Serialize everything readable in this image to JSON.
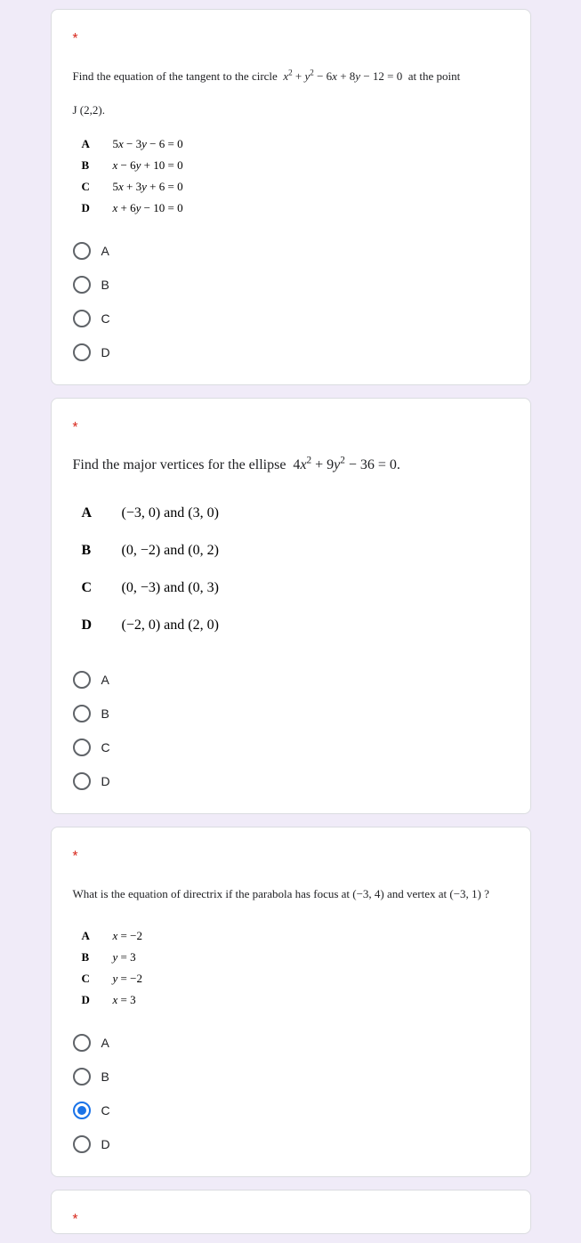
{
  "q1": {
    "asterisk": "*",
    "prompt_html": "Find the equation of the tangent to the circle  <span class='math'>x</span><sup>2</sup> + <span class='math'>y</span><sup>2</sup> − 6<span class='math'>x</span> + 8<span class='math'>y</span> − 12 = 0  at the point",
    "prompt_line2": "J (2,2).",
    "rows": [
      {
        "key": "A",
        "val_html": "5<span class='math'>x</span> − 3<span class='math'>y</span> − 6 = 0"
      },
      {
        "key": "B",
        "val_html": "<span class='math'>x</span> − 6<span class='math'>y</span> + 10 = 0"
      },
      {
        "key": "C",
        "val_html": "5<span class='math'>x</span> + 3<span class='math'>y</span> + 6 = 0"
      },
      {
        "key": "D",
        "val_html": "<span class='math'>x</span> + 6<span class='math'>y</span> − 10 = 0"
      }
    ],
    "options": [
      "A",
      "B",
      "C",
      "D"
    ],
    "selected": null
  },
  "q2": {
    "asterisk": "*",
    "prompt_html": "Find the major vertices for the ellipse  4<span class='math'>x</span><sup>2</sup> + 9<span class='math'>y</span><sup>2</sup> − 36 = 0.",
    "rows": [
      {
        "key": "A",
        "val_html": "(−3, 0) and (3, 0)"
      },
      {
        "key": "B",
        "val_html": "(0, −2) and (0, 2)"
      },
      {
        "key": "C",
        "val_html": "(0, −3) and (0, 3)"
      },
      {
        "key": "D",
        "val_html": "(−2, 0) and (2, 0)"
      }
    ],
    "options": [
      "A",
      "B",
      "C",
      "D"
    ],
    "selected": null
  },
  "q3": {
    "asterisk": "*",
    "prompt_html": "What is the equation of directrix if the parabola has focus at (−3, 4) and vertex at (−3, 1) ?",
    "rows": [
      {
        "key": "A",
        "val_html": "<span class='math'>x</span> = −2"
      },
      {
        "key": "B",
        "val_html": "<span class='math'>y</span> = 3"
      },
      {
        "key": "C",
        "val_html": "<span class='math'>y</span> = −2"
      },
      {
        "key": "D",
        "val_html": "<span class='math'>x</span> = 3"
      }
    ],
    "options": [
      "A",
      "B",
      "C",
      "D"
    ],
    "selected": "C"
  },
  "q4": {
    "asterisk": "*"
  }
}
